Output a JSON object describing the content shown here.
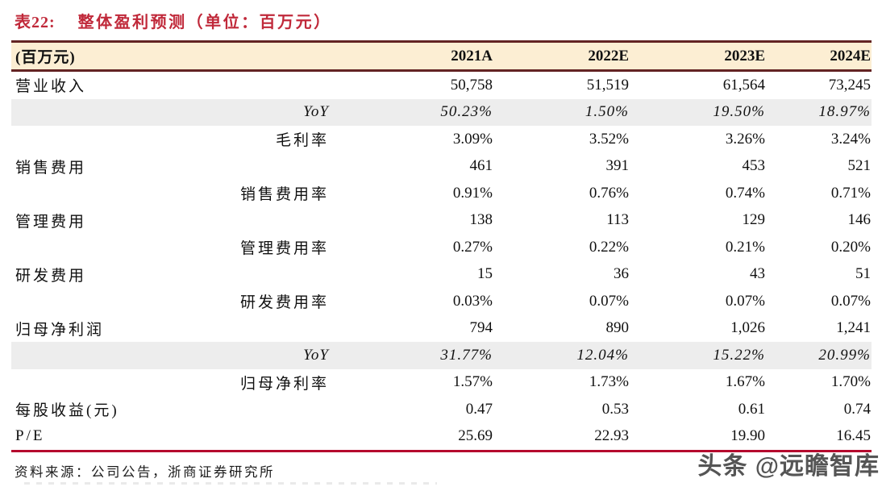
{
  "title": {
    "label": "表22:",
    "text": "整体盈利预测（单位：百万元）"
  },
  "table": {
    "header": [
      "(百万元)",
      "2021A",
      "2022E",
      "2023E",
      "2024E"
    ],
    "rows": [
      {
        "label": "营业收入",
        "sublabel": "",
        "values": [
          "50,758",
          "51,519",
          "61,564",
          "73,245"
        ],
        "shaded": false,
        "italic": false
      },
      {
        "label": "",
        "sublabel": "YoY",
        "values": [
          "50.23%",
          "1.50%",
          "19.50%",
          "18.97%"
        ],
        "shaded": true,
        "italic": true
      },
      {
        "label": "",
        "sublabel": "毛利率",
        "values": [
          "3.09%",
          "3.52%",
          "3.26%",
          "3.24%"
        ],
        "shaded": false,
        "italic": false
      },
      {
        "label": "销售费用",
        "sublabel": "",
        "values": [
          "461",
          "391",
          "453",
          "521"
        ],
        "shaded": false,
        "italic": false
      },
      {
        "label": "",
        "sublabel": "销售费用率",
        "values": [
          "0.91%",
          "0.76%",
          "0.74%",
          "0.71%"
        ],
        "shaded": false,
        "italic": false
      },
      {
        "label": "管理费用",
        "sublabel": "",
        "values": [
          "138",
          "113",
          "129",
          "146"
        ],
        "shaded": false,
        "italic": false
      },
      {
        "label": "",
        "sublabel": "管理费用率",
        "values": [
          "0.27%",
          "0.22%",
          "0.21%",
          "0.20%"
        ],
        "shaded": false,
        "italic": false
      },
      {
        "label": "研发费用",
        "sublabel": "",
        "values": [
          "15",
          "36",
          "43",
          "51"
        ],
        "shaded": false,
        "italic": false
      },
      {
        "label": "",
        "sublabel": "研发费用率",
        "values": [
          "0.03%",
          "0.07%",
          "0.07%",
          "0.07%"
        ],
        "shaded": false,
        "italic": false
      },
      {
        "label": "归母净利润",
        "sublabel": "",
        "values": [
          "794",
          "890",
          "1,026",
          "1,241"
        ],
        "shaded": false,
        "italic": false
      },
      {
        "label": "",
        "sublabel": "YoY",
        "values": [
          "31.77%",
          "12.04%",
          "15.22%",
          "20.99%"
        ],
        "shaded": true,
        "italic": true
      },
      {
        "label": "",
        "sublabel": "归母净利率",
        "values": [
          "1.57%",
          "1.73%",
          "1.67%",
          "1.70%"
        ],
        "shaded": false,
        "italic": false
      },
      {
        "label": "每股收益(元)",
        "sublabel": "",
        "values": [
          "0.47",
          "0.53",
          "0.61",
          "0.74"
        ],
        "shaded": false,
        "italic": false
      },
      {
        "label": "P/E",
        "sublabel": "",
        "values": [
          "25.69",
          "22.93",
          "19.90",
          "16.45"
        ],
        "shaded": false,
        "italic": false
      }
    ]
  },
  "footer": {
    "source": "资料来源：公司公告，浙商证券研究所"
  },
  "watermark": {
    "text": "头条 @远瞻智库"
  },
  "colors": {
    "title_red": "#c0293a",
    "header_background": "#fceed3",
    "border_maroon": "#632423",
    "bottom_line_red": "#b5082e",
    "stripe_gray": "#ededed"
  }
}
